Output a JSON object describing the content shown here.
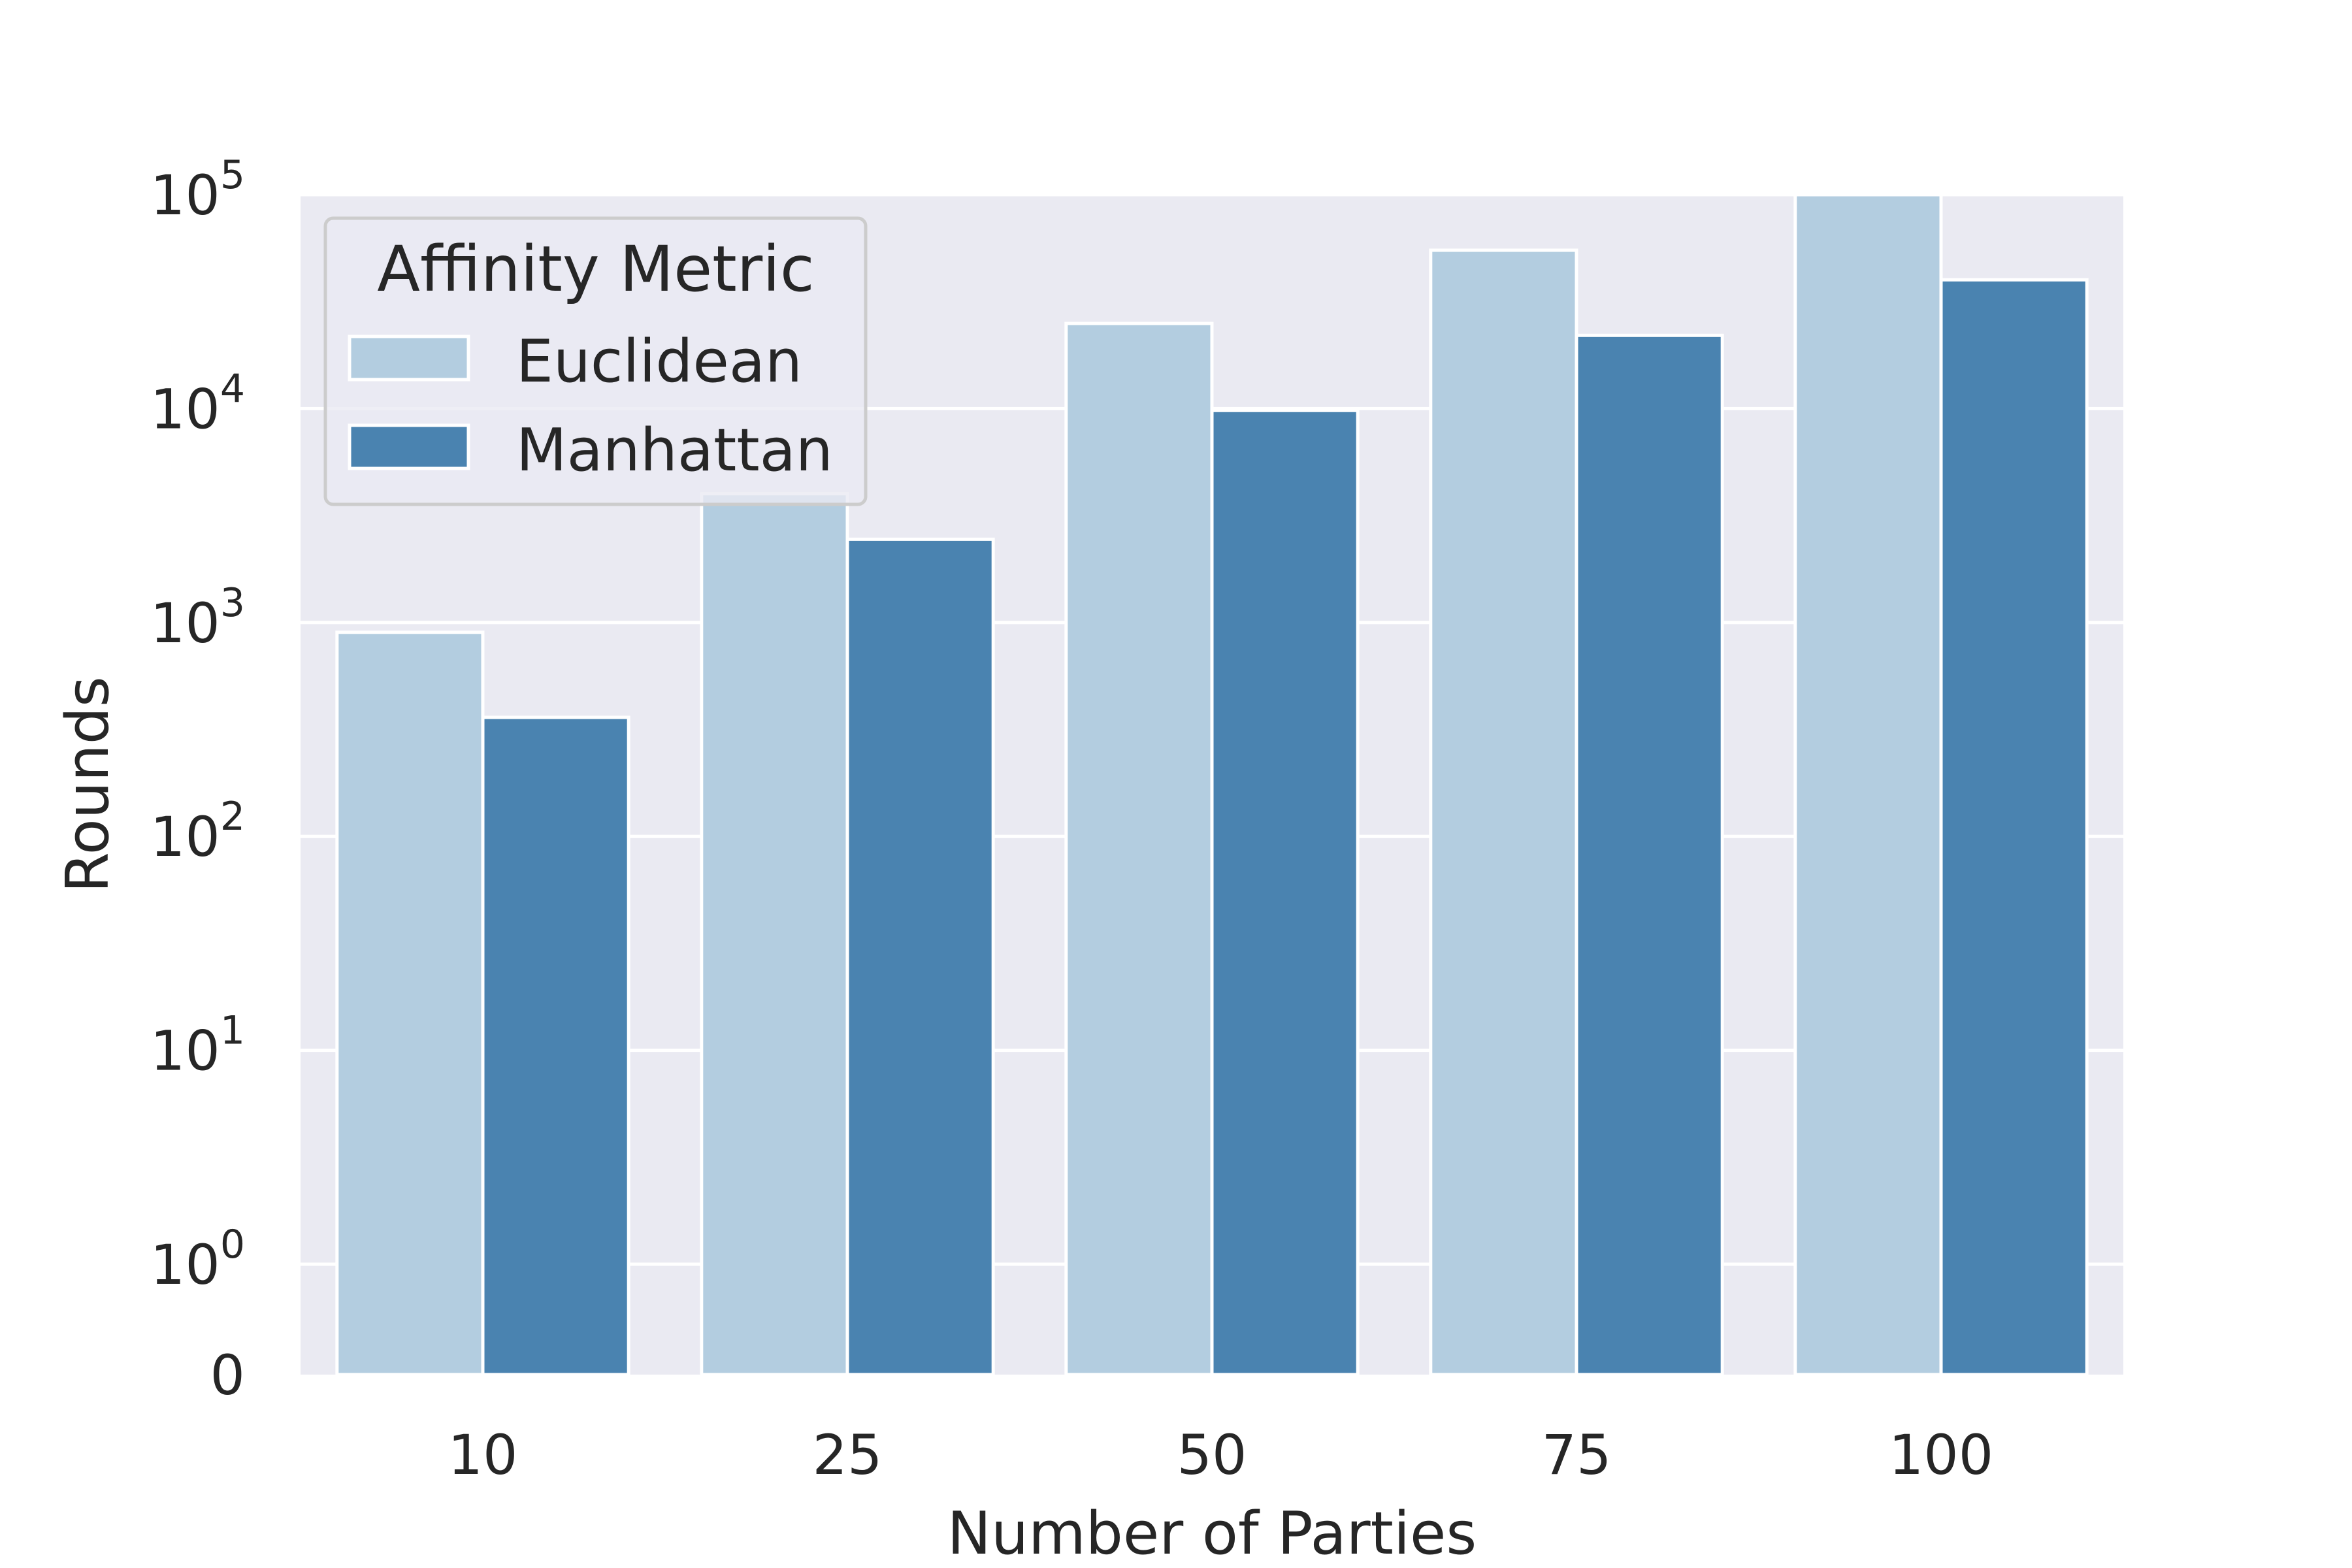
{
  "chart_data": {
    "type": "bar",
    "xlabel": "Number of Parties",
    "ylabel": "Rounds",
    "categories": [
      "10",
      "25",
      "50",
      "75",
      "100"
    ],
    "series": [
      {
        "name": "Euclidean",
        "color": "#b3cde0",
        "values": [
          900,
          4000,
          25000,
          55000,
          100000
        ]
      },
      {
        "name": "Manhattan",
        "color": "#4a83b0",
        "values": [
          360,
          2450,
          9800,
          22000,
          40000
        ]
      }
    ],
    "yscale": "symlog",
    "ylim": [
      0,
      100000
    ],
    "yticks": [
      {
        "base": "0",
        "exp": "",
        "value": 0
      },
      {
        "base": "10",
        "exp": "0",
        "value": 1
      },
      {
        "base": "10",
        "exp": "1",
        "value": 10
      },
      {
        "base": "10",
        "exp": "2",
        "value": 100
      },
      {
        "base": "10",
        "exp": "3",
        "value": 1000
      },
      {
        "base": "10",
        "exp": "4",
        "value": 10000
      },
      {
        "base": "10",
        "exp": "5",
        "value": 100000
      }
    ],
    "legend": {
      "title": "Affinity Metric",
      "position": "upper left"
    },
    "grid": true,
    "background": "#eaeaf2",
    "grid_color": "#ffffff"
  }
}
